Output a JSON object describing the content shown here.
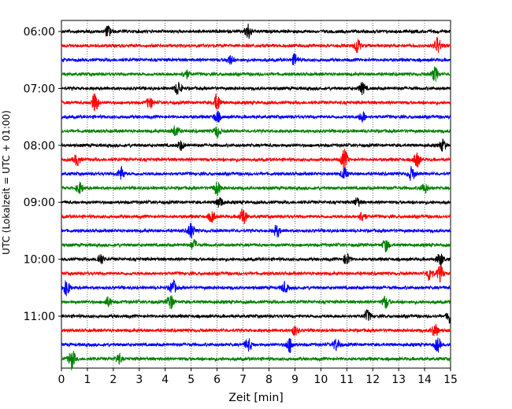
{
  "chart_data": {
    "type": "line",
    "xlabel": "Zeit  [min]",
    "ylabel": "UTC (Lokalzeit = UTC + 01:00)",
    "xlim": [
      0,
      15
    ],
    "x_ticks": [
      "0",
      "1",
      "2",
      "3",
      "4",
      "5",
      "6",
      "7",
      "8",
      "9",
      "10",
      "11",
      "12",
      "13",
      "14",
      "15"
    ],
    "y_ticks": [
      "06:00",
      "07:00",
      "08:00",
      "09:00",
      "10:00",
      "11:00"
    ],
    "y_tick_traces": [
      0,
      4,
      8,
      12,
      16,
      20
    ],
    "grid": "vertical dotted lines at each minute",
    "trace_colors": [
      "#000000",
      "#ff0000",
      "#0000ff",
      "#008000"
    ],
    "traces_count": 24,
    "trace_interval_min": 15,
    "start_time": "06:00",
    "events": [
      {
        "trace": 0,
        "t": 1.8,
        "a": 1.0
      },
      {
        "trace": 0,
        "t": 7.2,
        "a": 1.4
      },
      {
        "trace": 1,
        "t": 11.4,
        "a": 1.3
      },
      {
        "trace": 1,
        "t": 14.5,
        "a": 1.5
      },
      {
        "trace": 2,
        "t": 6.5,
        "a": 0.8
      },
      {
        "trace": 2,
        "t": 9.0,
        "a": 1.0
      },
      {
        "trace": 3,
        "t": 4.8,
        "a": 0.8
      },
      {
        "trace": 3,
        "t": 14.4,
        "a": 1.2
      },
      {
        "trace": 4,
        "t": 4.5,
        "a": 1.3
      },
      {
        "trace": 4,
        "t": 11.6,
        "a": 1.0
      },
      {
        "trace": 5,
        "t": 1.3,
        "a": 1.8
      },
      {
        "trace": 5,
        "t": 6.0,
        "a": 1.6
      },
      {
        "trace": 5,
        "t": 3.4,
        "a": 1.0
      },
      {
        "trace": 6,
        "t": 6.0,
        "a": 1.0
      },
      {
        "trace": 6,
        "t": 11.6,
        "a": 0.9
      },
      {
        "trace": 7,
        "t": 4.4,
        "a": 1.0
      },
      {
        "trace": 7,
        "t": 6.0,
        "a": 1.0
      },
      {
        "trace": 8,
        "t": 4.6,
        "a": 0.8
      },
      {
        "trace": 8,
        "t": 14.7,
        "a": 1.0
      },
      {
        "trace": 9,
        "t": 10.9,
        "a": 1.8
      },
      {
        "trace": 9,
        "t": 13.7,
        "a": 1.3
      },
      {
        "trace": 9,
        "t": 0.6,
        "a": 1.0
      },
      {
        "trace": 10,
        "t": 2.3,
        "a": 1.2
      },
      {
        "trace": 10,
        "t": 10.9,
        "a": 1.0
      },
      {
        "trace": 10,
        "t": 13.5,
        "a": 1.2
      },
      {
        "trace": 11,
        "t": 0.7,
        "a": 1.0
      },
      {
        "trace": 11,
        "t": 6.0,
        "a": 1.2
      },
      {
        "trace": 11,
        "t": 14.0,
        "a": 0.9
      },
      {
        "trace": 12,
        "t": 6.1,
        "a": 0.9
      },
      {
        "trace": 12,
        "t": 11.4,
        "a": 0.8
      },
      {
        "trace": 13,
        "t": 7.0,
        "a": 1.6
      },
      {
        "trace": 13,
        "t": 5.8,
        "a": 1.0
      },
      {
        "trace": 13,
        "t": 11.6,
        "a": 0.9
      },
      {
        "trace": 14,
        "t": 5.0,
        "a": 1.4
      },
      {
        "trace": 14,
        "t": 8.3,
        "a": 1.0
      },
      {
        "trace": 15,
        "t": 5.1,
        "a": 0.9
      },
      {
        "trace": 15,
        "t": 12.5,
        "a": 1.1
      },
      {
        "trace": 16,
        "t": 1.5,
        "a": 1.0
      },
      {
        "trace": 16,
        "t": 11.0,
        "a": 1.0
      },
      {
        "trace": 16,
        "t": 14.6,
        "a": 1.2
      },
      {
        "trace": 17,
        "t": 14.2,
        "a": 1.3
      },
      {
        "trace": 17,
        "t": 14.6,
        "a": 1.4
      },
      {
        "trace": 18,
        "t": 0.2,
        "a": 1.3
      },
      {
        "trace": 18,
        "t": 4.3,
        "a": 1.2
      },
      {
        "trace": 18,
        "t": 8.6,
        "a": 0.9
      },
      {
        "trace": 19,
        "t": 4.2,
        "a": 1.3
      },
      {
        "trace": 19,
        "t": 12.5,
        "a": 1.1
      },
      {
        "trace": 19,
        "t": 1.8,
        "a": 0.8
      },
      {
        "trace": 20,
        "t": 11.8,
        "a": 1.0
      },
      {
        "trace": 20,
        "t": 15.0,
        "a": 1.6
      },
      {
        "trace": 21,
        "t": 14.4,
        "a": 1.2
      },
      {
        "trace": 21,
        "t": 9.0,
        "a": 0.8
      },
      {
        "trace": 22,
        "t": 7.2,
        "a": 1.1
      },
      {
        "trace": 22,
        "t": 8.8,
        "a": 1.3
      },
      {
        "trace": 22,
        "t": 10.6,
        "a": 1.1
      },
      {
        "trace": 22,
        "t": 14.5,
        "a": 1.2
      },
      {
        "trace": 23,
        "t": 0.4,
        "a": 1.8
      },
      {
        "trace": 23,
        "t": 2.2,
        "a": 0.8
      }
    ]
  }
}
